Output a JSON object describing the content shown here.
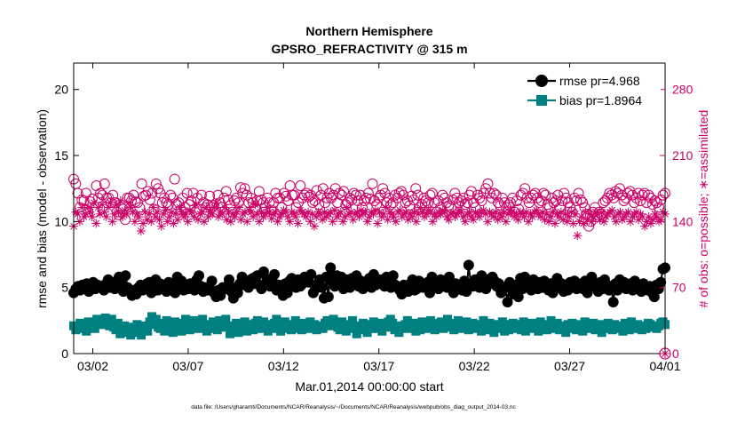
{
  "chart_data": {
    "type": "line",
    "title": "Northern Hemisphere",
    "subtitle": "GPSRO_REFRACTIVITY @ 315 m",
    "xlabel": "Mar.01,2014 00:00:00 start",
    "ylabel": "rmse and bias (model - observation)",
    "y2label": "# of obs: o=possible; ∗=assimilated",
    "xlim": [
      "2014-03-01",
      "2014-04-01"
    ],
    "ylim": [
      0,
      22
    ],
    "y2lim": [
      0,
      308
    ],
    "xticks": [
      {
        "date": "2014-03-02",
        "label": "03/02"
      },
      {
        "date": "2014-03-07",
        "label": "03/07"
      },
      {
        "date": "2014-03-12",
        "label": "03/12"
      },
      {
        "date": "2014-03-17",
        "label": "03/17"
      },
      {
        "date": "2014-03-22",
        "label": "03/22"
      },
      {
        "date": "2014-03-27",
        "label": "03/27"
      },
      {
        "date": "2014-04-01",
        "label": "04/01"
      }
    ],
    "yticks": [
      "0",
      "5",
      "10",
      "15",
      "20"
    ],
    "y2ticks": [
      "0",
      "70",
      "140",
      "210",
      "280"
    ],
    "legend_position": "top-right",
    "grid": false,
    "series": [
      {
        "name": "rmse pr=4.968",
        "axis": "left",
        "color": "#000000",
        "marker": "circle",
        "values": [
          4.6,
          4.9,
          5.1,
          4.8,
          5.2,
          5.0,
          5.3,
          4.7,
          5.1,
          5.4,
          4.9,
          5.2,
          5.0,
          5.1,
          4.8,
          5.3,
          5.6,
          5.0,
          5.3,
          4.9,
          5.5,
          5.8,
          5.2,
          4.7,
          5.9,
          5.0,
          4.7,
          4.4,
          4.8,
          4.5,
          5.0,
          5.2,
          4.8,
          5.0,
          5.3,
          5.4,
          4.6,
          5.1,
          5.6,
          4.8,
          5.3,
          4.9,
          5.1,
          4.7,
          5.4,
          5.0,
          5.2,
          4.6,
          5.8,
          5.1,
          5.5,
          4.8,
          5.2,
          4.9,
          5.3,
          5.0,
          4.8,
          5.6,
          5.9,
          5.1,
          4.7,
          5.0,
          4.8,
          4.9,
          5.5,
          4.6,
          4.3,
          4.8,
          4.4,
          5.0,
          4.9,
          5.1,
          5.6,
          4.7,
          4.2,
          5.0,
          4.6,
          5.3,
          5.8,
          5.2,
          5.4,
          5.0,
          5.6,
          5.7,
          5.3,
          5.9,
          5.2,
          4.9,
          6.2,
          5.3,
          5.6,
          5.1,
          5.7,
          6.0,
          4.8,
          5.2,
          5.0,
          4.4,
          5.3,
          4.6,
          5.5,
          5.7,
          5.2,
          5.0,
          5.6,
          5.1,
          5.3,
          5.8,
          5.5,
          5.4,
          6.0,
          4.6,
          4.9,
          5.3,
          5.6,
          5.0,
          4.2,
          5.8,
          4.3,
          6.5,
          5.4,
          5.1,
          5.9,
          5.3,
          5.8,
          4.9,
          5.2,
          5.6,
          5.0,
          5.7,
          5.3,
          5.9,
          5.1,
          5.5,
          4.9,
          5.4,
          5.2,
          5.7,
          5.0,
          6.0,
          5.2,
          5.4,
          5.6,
          5.5,
          5.1,
          5.8,
          5.3,
          5.0,
          5.9,
          5.2,
          5.1,
          4.8,
          4.5,
          5.2,
          5.0,
          4.7,
          5.3,
          5.6,
          4.8,
          4.9,
          5.5,
          5.2,
          5.0,
          5.1,
          5.4,
          4.6,
          5.8,
          5.0,
          5.2,
          4.9,
          5.6,
          5.1,
          5.4,
          5.0,
          5.8,
          5.1,
          4.6,
          5.3,
          5.0,
          5.2,
          4.8,
          5.5,
          4.7,
          6.7,
          5.3,
          5.1,
          5.6,
          5.4,
          5.0,
          5.9,
          5.2,
          4.9,
          5.6,
          5.3,
          5.8,
          5.5,
          5.1,
          5.3,
          4.6,
          4.9,
          5.0,
          3.9,
          5.4,
          5.1,
          4.5,
          5.2,
          4.3,
          5.7,
          4.9,
          5.8,
          5.1,
          5.3,
          4.8,
          5.6,
          5.2,
          4.9,
          5.4,
          5.0,
          5.5,
          5.2,
          4.8,
          5.3,
          4.6,
          5.1,
          5.7,
          5.0,
          5.3,
          4.7,
          5.2,
          4.8,
          5.4,
          5.1,
          5.5,
          4.9,
          5.3,
          5.1,
          4.9,
          5.5,
          4.6,
          5.1,
          5.8,
          5.3,
          5.0,
          4.7,
          5.4,
          4.9,
          5.6,
          5.2,
          4.8,
          5.1,
          3.9,
          5.3,
          4.8,
          5.6,
          5.1,
          5.4,
          4.9,
          5.0,
          5.3,
          4.8,
          5.5,
          5.1,
          5.2,
          4.7,
          5.3,
          5.0,
          4.8,
          5.1,
          4.6,
          4.3,
          5.2,
          4.9,
          5.4,
          6.4,
          6.5
        ]
      },
      {
        "name": "bias pr=1.8964",
        "axis": "left",
        "color": "#008080",
        "marker": "square",
        "values": [
          2.1,
          1.8,
          2.0,
          2.3,
          1.9,
          2.2,
          1.7,
          2.4,
          2.0,
          2.1,
          1.9,
          2.6,
          2.3,
          2.5,
          2.2,
          2.7,
          2.4,
          2.1,
          2.6,
          2.0,
          1.8,
          2.3,
          1.5,
          1.7,
          2.1,
          1.6,
          1.9,
          1.4,
          2.0,
          1.6,
          2.2,
          1.8,
          1.4,
          1.9,
          2.1,
          1.7,
          2.4,
          2.8,
          2.2,
          2.6,
          2.0,
          1.9,
          2.3,
          1.7,
          2.5,
          1.9,
          2.2,
          1.6,
          2.4,
          1.8,
          2.1,
          1.7,
          2.3,
          2.6,
          2.0,
          1.8,
          2.2,
          2.5,
          2.1,
          1.9,
          2.3,
          2.6,
          2.0,
          1.7,
          2.2,
          1.9,
          2.4,
          2.1,
          1.8,
          2.5,
          2.2,
          2.0,
          2.6,
          2.1,
          1.5,
          2.0,
          1.8,
          2.3,
          1.6,
          2.1,
          1.9,
          2.4,
          1.7,
          2.2,
          2.0,
          1.8,
          2.3,
          2.5,
          2.1,
          1.9,
          2.4,
          2.0,
          1.7,
          2.2,
          1.9,
          2.3,
          2.6,
          2.0,
          1.7,
          2.1,
          2.4,
          1.9,
          2.2,
          1.8,
          2.0,
          2.5,
          1.9,
          2.2,
          1.8,
          2.3,
          2.1,
          1.9,
          2.4,
          2.0,
          2.2,
          1.8,
          2.1,
          2.0,
          1.9,
          2.3,
          2.5,
          2.1,
          2.4,
          2.6,
          2.2,
          2.0,
          1.8,
          2.4,
          2.1,
          1.7,
          2.2,
          1.9,
          2.5,
          2.0,
          1.5,
          2.1,
          1.8,
          2.3,
          2.0,
          1.6,
          2.2,
          1.9,
          2.4,
          2.1,
          1.9,
          2.3,
          1.7,
          2.1,
          2.0,
          2.4,
          2.6,
          2.3,
          1.8,
          2.0,
          1.6,
          2.1,
          1.9,
          2.2,
          2.5,
          2.1,
          1.9,
          2.3,
          1.7,
          2.0,
          1.8,
          2.4,
          2.2,
          2.0,
          1.9,
          2.5,
          2.3,
          1.8,
          2.1,
          2.0,
          2.4,
          1.9,
          2.2,
          2.6,
          2.0,
          2.3,
          1.8,
          2.1,
          2.5,
          1.9,
          2.2,
          2.0,
          2.4,
          1.8,
          2.1,
          2.3,
          1.9,
          2.0,
          2.2,
          1.7,
          2.5,
          2.0,
          1.8,
          2.3,
          2.1,
          1.6,
          2.2,
          1.9,
          2.0,
          2.4,
          1.7,
          2.2,
          1.8,
          2.1,
          2.3,
          1.9,
          2.0,
          2.2,
          1.8,
          2.4,
          1.7,
          2.1,
          2.0,
          2.3,
          1.9,
          2.1,
          1.7,
          2.4,
          2.0,
          2.2,
          1.8,
          2.1,
          2.5,
          2.0,
          1.9,
          2.3,
          1.8,
          2.1,
          2.0,
          1.6,
          2.2,
          1.9,
          2.3,
          2.1,
          1.8,
          2.0,
          2.2,
          1.7,
          2.4,
          2.0,
          1.9,
          2.1,
          2.3,
          1.8,
          2.0,
          2.2,
          1.6,
          2.1,
          1.9,
          2.3,
          2.0,
          1.8,
          2.2,
          1.9,
          2.1,
          2.0,
          1.7,
          2.3,
          2.1,
          1.8,
          2.4,
          2.0,
          1.9,
          2.2,
          2.0,
          1.8,
          2.1,
          1.9,
          2.3,
          2.2,
          2.0,
          2.1,
          1.9,
          2.1,
          2.3,
          2.4,
          2.2
        ]
      },
      {
        "name": "possible",
        "axis": "right",
        "color": "#cc0066",
        "marker": "open-circle",
        "values": [
          185,
          180,
          170,
          155,
          163,
          162,
          170,
          150,
          161,
          164,
          150,
          178,
          165,
          170,
          168,
          180,
          165,
          165,
          160,
          168,
          160,
          150,
          147,
          155,
          153,
          142,
          165,
          165,
          162,
          168,
          161,
          160,
          155,
          180,
          167,
          168,
          172,
          163,
          170,
          153,
          180,
          175,
          170,
          160,
          165,
          160,
          158,
          168,
          165,
          185,
          158,
          160,
          152,
          165,
          155,
          170,
          158,
          162,
          170,
          150,
          165,
          153,
          168,
          160,
          155,
          158,
          167,
          155,
          157,
          150,
          168,
          160,
          155,
          165,
          172,
          163,
          157,
          150,
          162,
          165,
          160,
          176,
          170,
          175,
          168,
          160,
          165,
          160,
          155,
          162,
          172,
          163,
          160,
          155,
          165,
          160,
          152,
          160,
          170,
          165,
          165,
          155,
          170,
          167,
          162,
          178,
          168,
          168,
          155,
          160,
          178,
          165,
          168,
          170,
          166,
          168,
          160,
          162,
          173,
          158,
          168,
          175,
          160,
          165,
          170,
          165,
          168,
          175,
          160,
          170,
          168,
          172,
          158,
          160,
          165,
          163,
          170,
          168,
          162,
          168,
          155,
          162,
          165,
          170,
          164,
          180,
          162,
          158,
          165,
          168,
          175,
          170,
          160,
          165,
          158,
          160,
          168,
          165,
          170,
          172,
          168,
          160,
          162,
          157,
          167,
          163,
          175,
          168,
          155,
          158,
          165,
          162,
          160,
          168,
          170,
          160,
          150,
          162,
          155,
          168,
          165,
          160,
          157,
          155,
          163,
          170,
          165,
          160,
          162,
          165,
          158,
          160,
          168,
          172,
          160,
          155,
          168,
          165,
          162,
          170,
          175,
          180,
          170,
          165,
          170,
          168,
          160,
          157,
          165,
          160,
          155,
          158,
          160,
          165,
          150,
          162,
          153,
          168,
          170,
          175,
          165,
          160,
          165,
          168,
          170,
          165,
          160,
          162,
          170,
          168,
          158,
          155,
          165,
          160,
          162,
          168,
          155,
          162,
          170,
          165,
          160,
          155,
          150,
          165,
          162,
          170,
          163,
          160,
          155,
          148,
          135,
          140,
          150,
          155,
          145,
          150,
          148,
          160,
          162,
          165,
          170,
          168,
          165,
          172,
          170,
          175,
          168,
          162,
          165,
          170,
          172,
          168,
          160,
          165,
          170,
          162,
          168,
          170,
          160,
          168,
          165,
          158,
          162,
          160,
          155,
          163,
          168,
          170
        ]
      },
      {
        "name": "assimilated",
        "axis": "right",
        "color": "#cc0066",
        "marker": "asterisk",
        "values": [
          135,
          150,
          148,
          140,
          155,
          145,
          148,
          155,
          150,
          145,
          160,
          138,
          155,
          148,
          158,
          150,
          145,
          155,
          160,
          140,
          148,
          158,
          150,
          162,
          145,
          152,
          148,
          160,
          155,
          150,
          140,
          148,
          145,
          130,
          138,
          150,
          142,
          148,
          140,
          155,
          145,
          150,
          142,
          135,
          148,
          152,
          140,
          145,
          150,
          138,
          148,
          142,
          155,
          150,
          145,
          148,
          140,
          152,
          150,
          145,
          158,
          142,
          148,
          150,
          140,
          155,
          145,
          150,
          148,
          155,
          160,
          145,
          150,
          148,
          155,
          142,
          150,
          140,
          148,
          145,
          150,
          155,
          142,
          148,
          150,
          140,
          152,
          150,
          145,
          158,
          148,
          140,
          150,
          145,
          148,
          155,
          150,
          143,
          148,
          150,
          140,
          145,
          148,
          152,
          150,
          145,
          140,
          150,
          148,
          145,
          138,
          152,
          150,
          148,
          145,
          150,
          140,
          148,
          135,
          145,
          150,
          148,
          142,
          150,
          145,
          148,
          150,
          140,
          152,
          145,
          148,
          150,
          140,
          145,
          155,
          148,
          150,
          142,
          148,
          150,
          145,
          152,
          148,
          150,
          140,
          145,
          150,
          148,
          152,
          138,
          150,
          145,
          148,
          155,
          142,
          150,
          148,
          145,
          140,
          150,
          152,
          145,
          148,
          150,
          142,
          148,
          145,
          150,
          140,
          148,
          155,
          150,
          145,
          148,
          152,
          150,
          140,
          148,
          145,
          150,
          148,
          152,
          150,
          145,
          142,
          148,
          150,
          145,
          148,
          152,
          150,
          145,
          140,
          148,
          150,
          145,
          142,
          150,
          148,
          145,
          150,
          152,
          148,
          140,
          150,
          148,
          145,
          150,
          142,
          148,
          145,
          150,
          140,
          148,
          152,
          150,
          145,
          148,
          142,
          150,
          148,
          145,
          150,
          140,
          148,
          145,
          150,
          152,
          148,
          145,
          150,
          142,
          148,
          140,
          145,
          150,
          138,
          148,
          145,
          150,
          142,
          148,
          140,
          145,
          150,
          138,
          148,
          125,
          140,
          145,
          138,
          150,
          142,
          148,
          140,
          145,
          150,
          148,
          142,
          150,
          140,
          145,
          148,
          150,
          152,
          145,
          140,
          148,
          150,
          142,
          145,
          148,
          150,
          140,
          145,
          148,
          150,
          142,
          148,
          145,
          135,
          140,
          145,
          138,
          142,
          148,
          145,
          140,
          142,
          150,
          148
        ]
      }
    ]
  },
  "footer": {
    "datafile": "data file: /Users/gharamti/Documents/NCAR/Reanalysis/~/Documents/NCAR/Reanalysis/webpub/obs_diag_output_2014-03.nc"
  },
  "colors": {
    "rmse": "#000000",
    "bias": "#008080",
    "obs": "#cc0066"
  }
}
